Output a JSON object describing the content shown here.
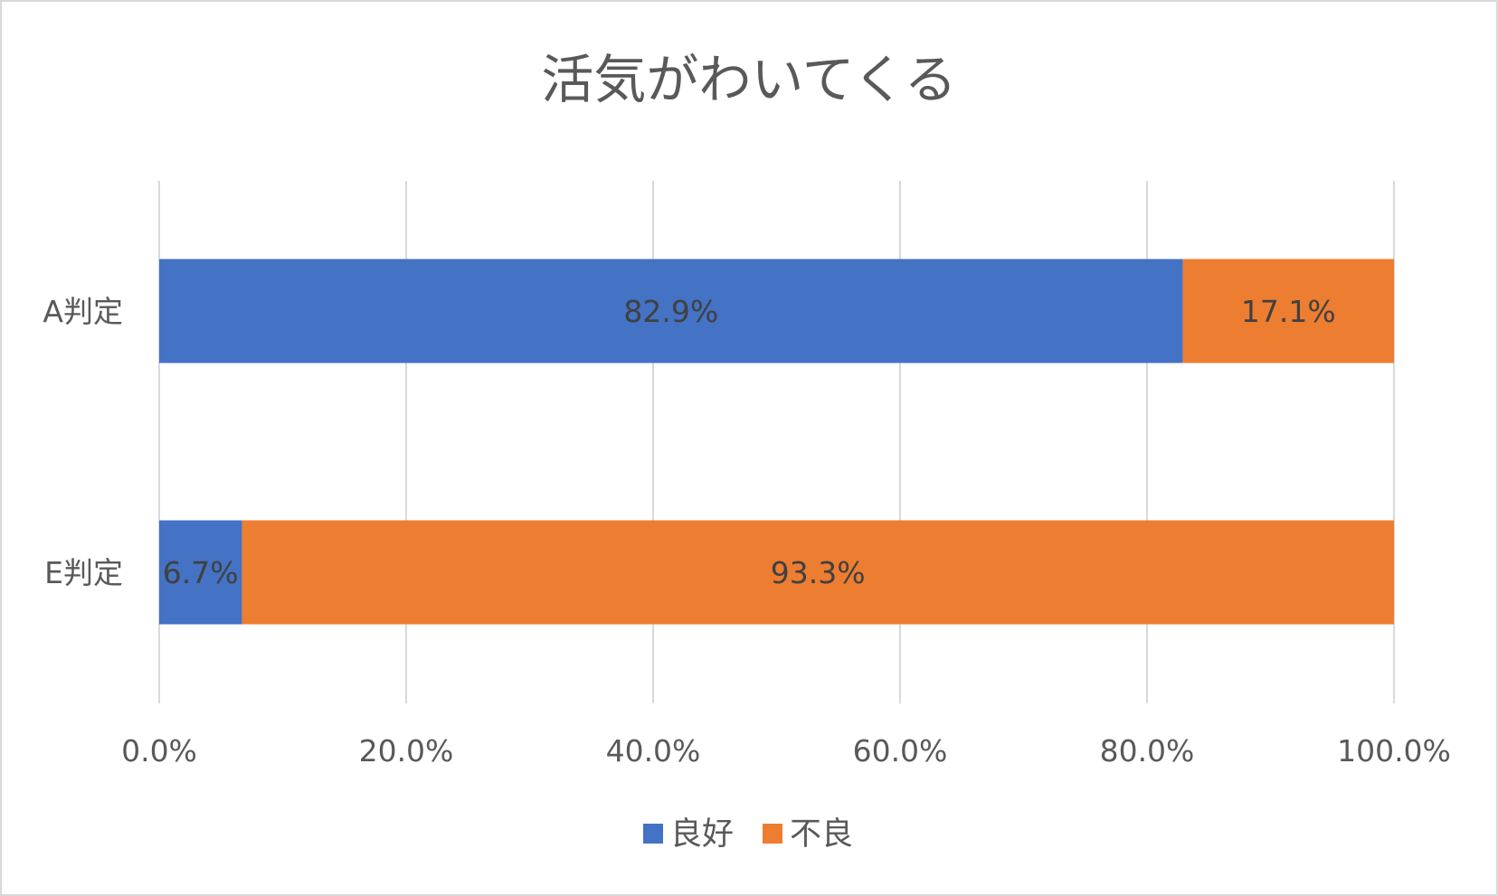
{
  "chart_data": {
    "type": "bar",
    "orientation": "horizontal",
    "stacked": true,
    "title": "活気がわいてくる",
    "categories": [
      "A判定",
      "E判定"
    ],
    "series": [
      {
        "name": "良好",
        "values": [
          82.9,
          6.7
        ],
        "labels": [
          "82.9%",
          "6.7%"
        ],
        "color": "#4472C4"
      },
      {
        "name": "不良",
        "values": [
          17.1,
          93.3
        ],
        "labels": [
          "17.1%",
          "93.3%"
        ],
        "color": "#ED7D31"
      }
    ],
    "xlim": [
      0,
      100
    ],
    "x_ticks": [
      "0.0%",
      "20.0%",
      "40.0%",
      "60.0%",
      "80.0%",
      "100.0%"
    ],
    "grid": true,
    "legend_position": "bottom"
  }
}
